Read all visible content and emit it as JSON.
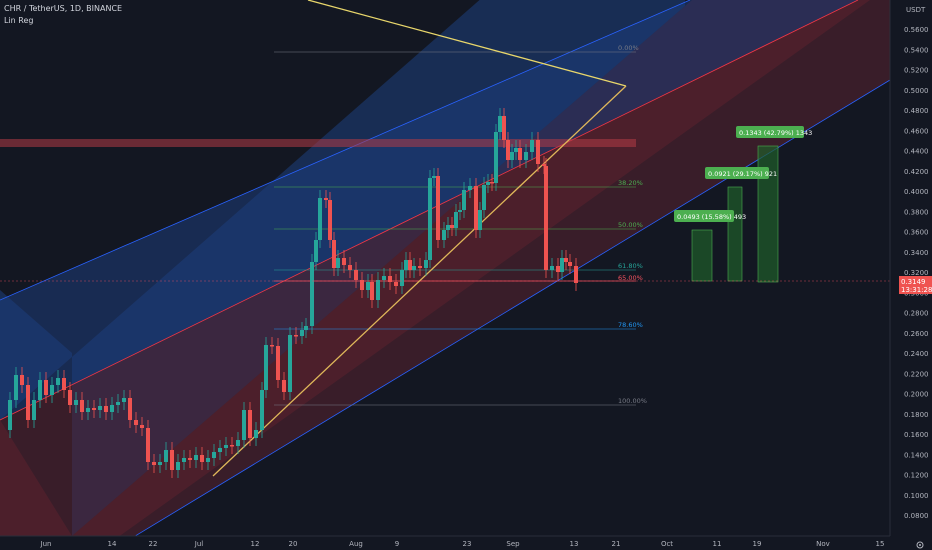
{
  "header": {
    "symbol_line": "CHR / TetherUS, 1D, BINANCE",
    "indicator": "Lin Reg"
  },
  "price_axis": {
    "currency": "USDT",
    "ticks": [
      "0.5600",
      "0.5400",
      "0.5200",
      "0.5000",
      "0.4800",
      "0.4600",
      "0.4400",
      "0.4200",
      "0.4000",
      "0.3800",
      "0.3600",
      "0.3400",
      "0.3200",
      "0.3000",
      "0.2800",
      "0.2600",
      "0.2400",
      "0.2200",
      "0.2000",
      "0.1800",
      "0.1600",
      "0.1400",
      "0.1200",
      "0.1000",
      "0.0800"
    ],
    "current_price": "0.3149",
    "countdown": "13:31:28"
  },
  "time_axis": {
    "ticks": [
      "Jun",
      "14",
      "22",
      "Jul",
      "12",
      "20",
      "Aug",
      "9",
      "23",
      "Sep",
      "13",
      "21",
      "Oct",
      "11",
      "19",
      "Nov",
      "15"
    ]
  },
  "fib_levels": [
    {
      "label": "0.00%",
      "color": "#787b86"
    },
    {
      "label": "38.20%",
      "color": "#4caf50"
    },
    {
      "label": "50.00%",
      "color": "#4caf50"
    },
    {
      "label": "61.80%",
      "color": "#26a69a"
    },
    {
      "label": "65.00%",
      "color": "#f7525f"
    },
    {
      "label": "78.60%",
      "color": "#2196f3"
    },
    {
      "label": "100.00%",
      "color": "#787b86"
    }
  ],
  "targets": [
    {
      "label": "0.0493 (15.58%) 493"
    },
    {
      "label": "0.0921 (29.17%) 921"
    },
    {
      "label": "0.1343 (42.79%) 1343"
    }
  ],
  "colors": {
    "background": "#131722",
    "up": "#26a69a",
    "down": "#ef5350",
    "channel_upper": "#1e3a6e",
    "channel_lower": "#4a1f2a",
    "trendline_yellow": "#e8d66b",
    "trendline_orange": "#e0b85a",
    "target_green": "#4caf50"
  }
}
